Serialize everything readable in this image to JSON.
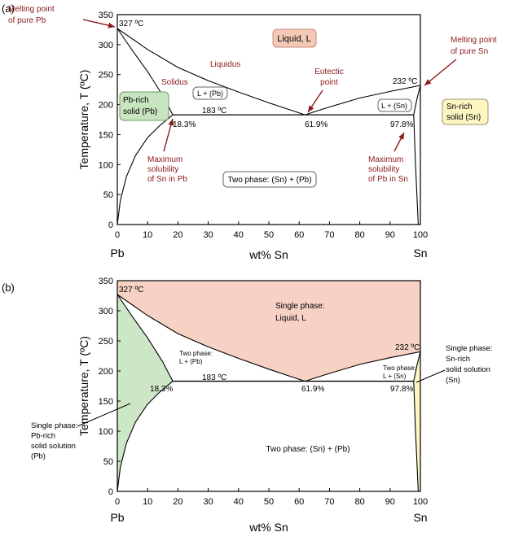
{
  "colors": {
    "annotation": "#8b1a1a",
    "liquid_fill": "#f6d1c4",
    "pb_fill": "#cde6c6",
    "sn_fill": "#fdf6c3",
    "liquid_box": "#f4c8b6",
    "liquid_box_stroke": "#c98a78",
    "pb_box": "#c8e4c0",
    "pb_box_stroke": "#6c9e62",
    "sn_box": "#fdf6c3",
    "sn_box_stroke": "#999966",
    "line": "#000000"
  },
  "chart_data": [
    {
      "type": "line",
      "panel_label": "(a)",
      "xlabel": "wt% Sn",
      "ylabel": "Temperature, T (ºC)",
      "xlim": [
        0,
        100
      ],
      "ylim": [
        0,
        350
      ],
      "x_ticks": [
        "0",
        "10",
        "20",
        "30",
        "40",
        "50",
        "60",
        "70",
        "80",
        "90",
        "100"
      ],
      "y_ticks": [
        "0",
        "50",
        "100",
        "150",
        "200",
        "250",
        "300",
        "350"
      ],
      "x_ends": [
        "Pb",
        "Sn"
      ],
      "points": {
        "pb_melt": [
          0,
          327
        ],
        "pb_solvus": [
          18.3,
          183
        ],
        "eutectic": [
          61.9,
          183
        ],
        "sn_solvus": [
          97.8,
          183
        ],
        "sn_melt": [
          100,
          232
        ]
      },
      "curves": {
        "liquidus_left": [
          [
            0,
            327
          ],
          [
            10,
            292
          ],
          [
            20,
            262
          ],
          [
            30,
            240
          ],
          [
            40,
            221
          ],
          [
            50,
            203
          ],
          [
            61.9,
            183
          ]
        ],
        "liquidus_right": [
          [
            61.9,
            183
          ],
          [
            70,
            196
          ],
          [
            80,
            211
          ],
          [
            90,
            222
          ],
          [
            100,
            232
          ]
        ],
        "solidus_left": [
          [
            0,
            327
          ],
          [
            5,
            290
          ],
          [
            10,
            255
          ],
          [
            15,
            215
          ],
          [
            18.3,
            183
          ]
        ],
        "solvus_left": [
          [
            0,
            0
          ],
          [
            1,
            40
          ],
          [
            3,
            80
          ],
          [
            6,
            115
          ],
          [
            10,
            145
          ],
          [
            14,
            165
          ],
          [
            18.3,
            183
          ]
        ],
        "solidus_right": [
          [
            97.8,
            183
          ],
          [
            98.9,
            210
          ],
          [
            100,
            232
          ]
        ],
        "solvus_right": [
          [
            97.8,
            183
          ],
          [
            98.4,
            100
          ],
          [
            99.3,
            0
          ]
        ]
      },
      "labels": {
        "liquid": "Liquid, L",
        "pb_region": [
          "Pb-rich",
          "solid (Pb)"
        ],
        "sn_region": [
          "Sn-rich",
          "solid (Sn)"
        ],
        "l_pb": "L + (Pb)",
        "l_sn": "L + (Sn)",
        "two_phase": "Two phase: (Sn) + (Pb)",
        "liquidus": "Liquidus",
        "solidus": "Solidus",
        "t_pb": "327 ºC",
        "t_sn": "232 ºC",
        "t_eut": "183 ºC",
        "c_left": "18.3%",
        "c_eut": "61.9%",
        "c_right": "97.8%",
        "melt_pb": [
          "Melting point",
          "of pure Pb"
        ],
        "melt_sn": [
          "Melting point",
          "of pure Sn"
        ],
        "eutectic_point": [
          "Eutectic",
          "point"
        ],
        "max_sn_in_pb": [
          "Maximum",
          "solubility",
          "of Sn in Pb"
        ],
        "max_pb_in_sn": [
          "Maximum",
          "solubility",
          "of Pb in Sn"
        ]
      }
    },
    {
      "type": "area",
      "panel_label": "(b)",
      "xlabel": "wt% Sn",
      "ylabel": "Temperature, T (ºC)",
      "xlim": [
        0,
        100
      ],
      "ylim": [
        0,
        350
      ],
      "x_ticks": [
        "0",
        "10",
        "20",
        "30",
        "40",
        "50",
        "60",
        "70",
        "80",
        "90",
        "100"
      ],
      "y_ticks": [
        "0",
        "50",
        "100",
        "150",
        "200",
        "250",
        "300",
        "350"
      ],
      "x_ends": [
        "Pb",
        "Sn"
      ],
      "labels": {
        "liquid": [
          "Single phase:",
          "Liquid, L"
        ],
        "l_pb": [
          "Two phase:",
          "L + (Pb)"
        ],
        "l_sn": [
          "Two phase:",
          "L + (Sn)"
        ],
        "two_phase": "Two phase: (Sn) + (Pb)",
        "pb_single": [
          "Single phase:",
          "Pb-rich",
          "solid solution",
          "(Pb)"
        ],
        "sn_single": [
          "Single phase:",
          "Sn-rich",
          "solid solution",
          "(Sn)"
        ],
        "t_pb": "327 ºC",
        "t_sn": "232 ºC",
        "t_eut": "183 ºC",
        "c_left": "18.3%",
        "c_eut": "61.9%",
        "c_right": "97.8%"
      }
    }
  ]
}
